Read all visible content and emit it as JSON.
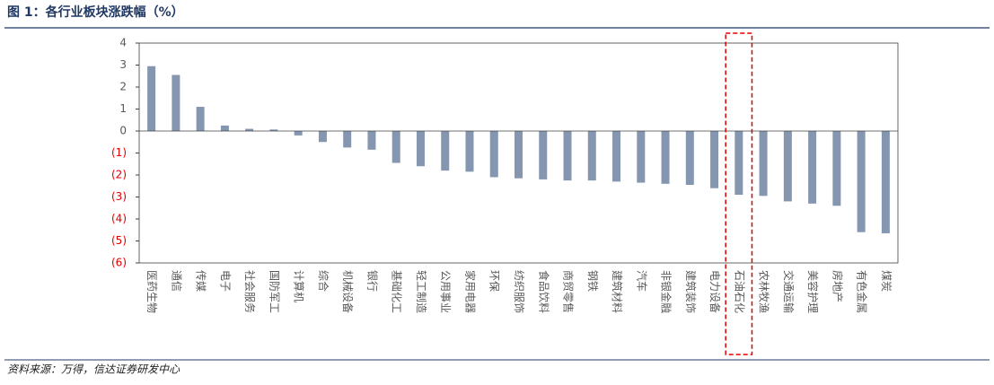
{
  "chart_data": {
    "type": "bar",
    "title": "图 1：各行业板块涨跌幅（%）",
    "source": "资料来源：万得，信达证券研发中心",
    "categories": [
      "医药生物",
      "通信",
      "传媒",
      "电子",
      "社会服务",
      "国防军工",
      "计算机",
      "综合",
      "机械设备",
      "银行",
      "基础化工",
      "轻工制造",
      "公用事业",
      "家用电器",
      "环保",
      "纺织服饰",
      "食品饮料",
      "商贸零售",
      "钢铁",
      "建筑材料",
      "汽车",
      "非银金融",
      "建筑装饰",
      "电力设备",
      "石油石化",
      "农林牧渔",
      "交通运输",
      "美容护理",
      "房地产",
      "有色金属",
      "煤炭"
    ],
    "values": [
      2.95,
      2.55,
      1.1,
      0.25,
      0.1,
      0.07,
      -0.2,
      -0.5,
      -0.75,
      -0.85,
      -1.45,
      -1.6,
      -1.8,
      -1.85,
      -2.1,
      -2.15,
      -2.2,
      -2.25,
      -2.25,
      -2.3,
      -2.35,
      -2.4,
      -2.45,
      -2.6,
      -2.9,
      -2.95,
      -3.2,
      -3.3,
      -3.4,
      -4.6,
      -4.65
    ],
    "color": "#8496b0",
    "ylim": [
      -6,
      4
    ],
    "yticks": [
      {
        "value": -6,
        "label": "(6)"
      },
      {
        "value": -5,
        "label": "(5)"
      },
      {
        "value": -4,
        "label": "(4)"
      },
      {
        "value": -3,
        "label": "(3)"
      },
      {
        "value": -2,
        "label": "(2)"
      },
      {
        "value": -1,
        "label": "(1)"
      },
      0,
      1,
      2,
      3,
      4
    ],
    "tick_label_color": "#595959",
    "negative_tick_label_color": "#e00000",
    "highlight_index": 24,
    "highlight_color": "#e00000"
  }
}
